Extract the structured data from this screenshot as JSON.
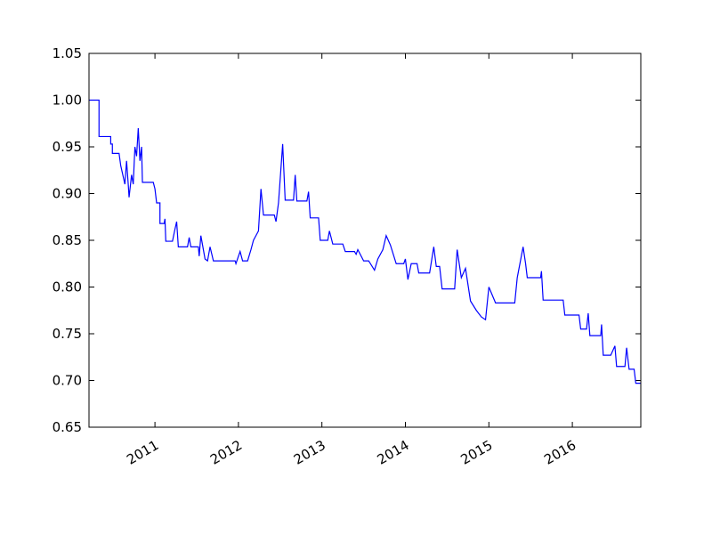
{
  "chart_data": {
    "type": "line",
    "color": "#0000ff",
    "x": [
      2010.21,
      2010.33,
      2010.33,
      2010.47,
      2010.47,
      2010.49,
      2010.49,
      2010.57,
      2010.59,
      2010.64,
      2010.66,
      2010.68,
      2010.69,
      2010.72,
      2010.74,
      2010.76,
      2010.78,
      2010.8,
      2010.82,
      2010.84,
      2010.85,
      2010.98,
      2011.0,
      2011.02,
      2011.06,
      2011.06,
      2011.11,
      2011.12,
      2011.13,
      2011.21,
      2011.24,
      2011.26,
      2011.28,
      2011.39,
      2011.41,
      2011.43,
      2011.52,
      2011.53,
      2011.55,
      2011.6,
      2011.63,
      2011.66,
      2011.7,
      2011.96,
      2011.97,
      2012.02,
      2012.05,
      2012.11,
      2012.15,
      2012.18,
      2012.24,
      2012.27,
      2012.3,
      2012.43,
      2012.45,
      2012.48,
      2012.53,
      2012.56,
      2012.66,
      2012.68,
      2012.7,
      2012.82,
      2012.84,
      2012.86,
      2012.96,
      2012.98,
      2013.07,
      2013.09,
      2013.13,
      2013.25,
      2013.28,
      2013.39,
      2013.41,
      2013.43,
      2013.5,
      2013.56,
      2013.63,
      2013.67,
      2013.73,
      2013.77,
      2013.82,
      2013.89,
      2013.98,
      2014.0,
      2014.03,
      2014.07,
      2014.14,
      2014.16,
      2014.29,
      2014.34,
      2014.37,
      2014.41,
      2014.44,
      2014.59,
      2014.62,
      2014.67,
      2014.72,
      2014.78,
      2014.85,
      2014.91,
      2014.96,
      2015.0,
      2015.08,
      2015.31,
      2015.34,
      2015.41,
      2015.44,
      2015.46,
      2015.62,
      2015.63,
      2015.65,
      2015.89,
      2015.91,
      2016.08,
      2016.1,
      2016.17,
      2016.19,
      2016.21,
      2016.34,
      2016.35,
      2016.37,
      2016.46,
      2016.51,
      2016.53,
      2016.63,
      2016.65,
      2016.68,
      2016.74,
      2016.76,
      2016.82
    ],
    "values": [
      1.0,
      1.0,
      0.961,
      0.961,
      0.953,
      0.953,
      0.943,
      0.943,
      0.93,
      0.91,
      0.935,
      0.91,
      0.896,
      0.92,
      0.91,
      0.95,
      0.94,
      0.97,
      0.935,
      0.95,
      0.912,
      0.912,
      0.905,
      0.89,
      0.89,
      0.868,
      0.868,
      0.873,
      0.849,
      0.849,
      0.862,
      0.87,
      0.843,
      0.843,
      0.853,
      0.843,
      0.843,
      0.833,
      0.855,
      0.83,
      0.828,
      0.843,
      0.828,
      0.828,
      0.825,
      0.838,
      0.828,
      0.828,
      0.84,
      0.85,
      0.86,
      0.905,
      0.877,
      0.877,
      0.87,
      0.89,
      0.953,
      0.893,
      0.893,
      0.92,
      0.892,
      0.892,
      0.902,
      0.874,
      0.874,
      0.85,
      0.85,
      0.86,
      0.846,
      0.846,
      0.838,
      0.838,
      0.835,
      0.84,
      0.828,
      0.828,
      0.818,
      0.83,
      0.84,
      0.855,
      0.845,
      0.825,
      0.825,
      0.83,
      0.808,
      0.825,
      0.825,
      0.815,
      0.815,
      0.843,
      0.822,
      0.822,
      0.798,
      0.798,
      0.84,
      0.81,
      0.82,
      0.785,
      0.775,
      0.768,
      0.765,
      0.8,
      0.783,
      0.783,
      0.81,
      0.843,
      0.825,
      0.81,
      0.81,
      0.817,
      0.786,
      0.786,
      0.77,
      0.77,
      0.755,
      0.755,
      0.772,
      0.748,
      0.748,
      0.76,
      0.727,
      0.727,
      0.737,
      0.715,
      0.715,
      0.735,
      0.712,
      0.712,
      0.697,
      0.697
    ],
    "xlim": [
      2010.21,
      2016.82
    ],
    "xticks": [
      2011,
      2012,
      2013,
      2014,
      2015,
      2016
    ],
    "ylim": [
      0.65,
      1.05
    ],
    "yticks": [
      0.65,
      {
        "value": 0.7,
        "label": "0.70"
      },
      0.75,
      {
        "value": 0.8,
        "label": "0.80"
      },
      0.85,
      {
        "value": 0.9,
        "label": "0.90"
      },
      0.95,
      {
        "value": 1.0,
        "label": "1.00"
      },
      1.05
    ]
  }
}
